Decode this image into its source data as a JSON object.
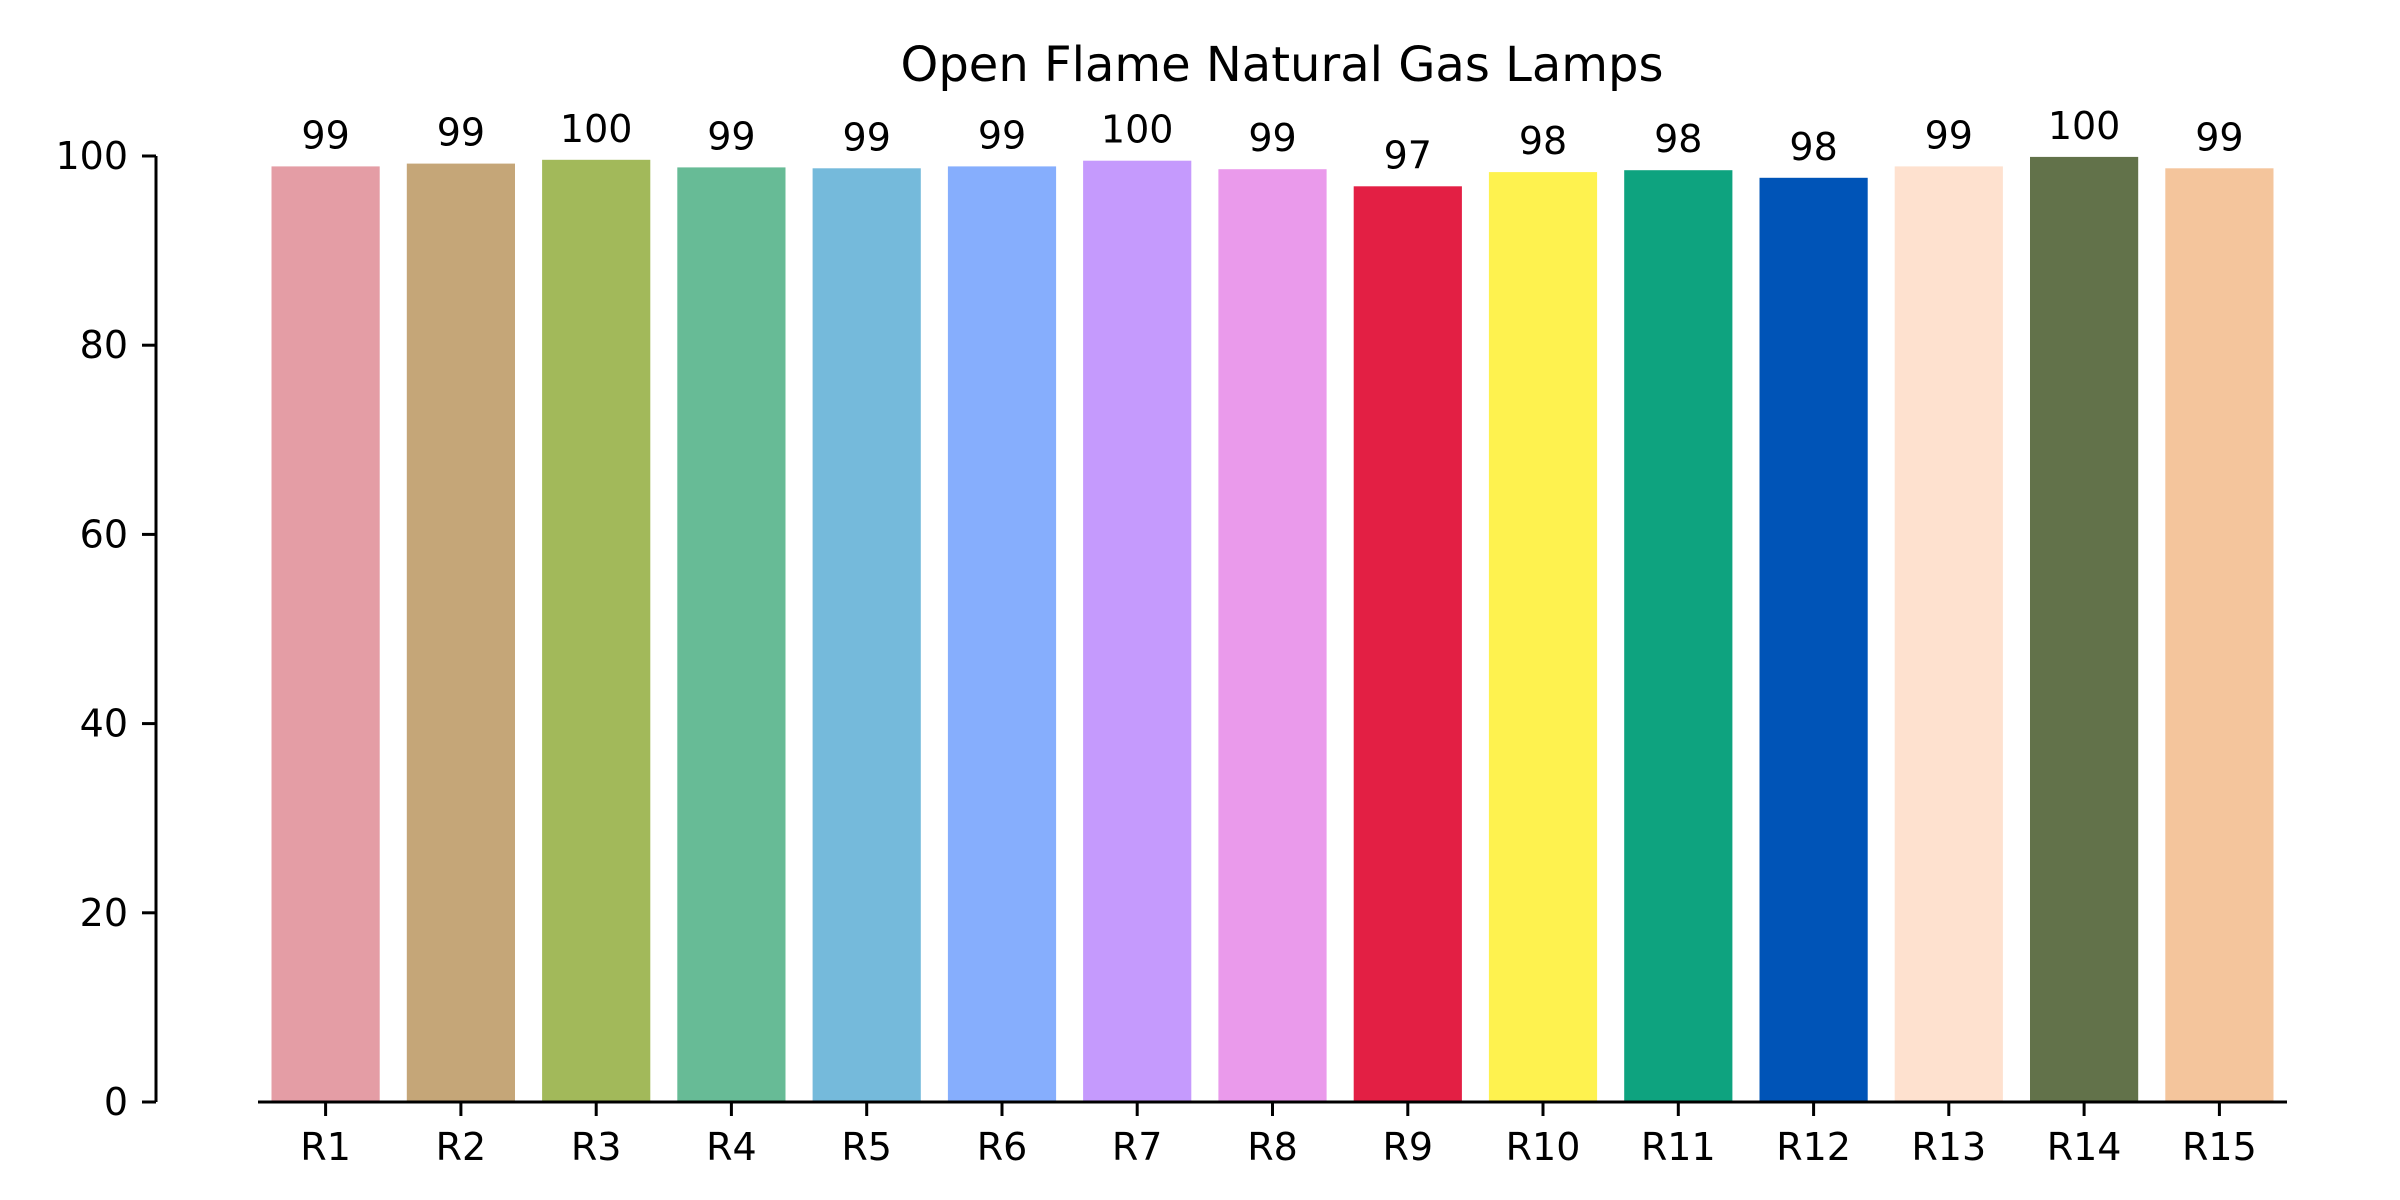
{
  "chart_data": {
    "type": "bar",
    "title": "Open Flame Natural Gas Lamps",
    "xlabel": "",
    "ylabel": "",
    "categories": [
      "R1",
      "R2",
      "R3",
      "R4",
      "R5",
      "R6",
      "R7",
      "R8",
      "R9",
      "R10",
      "R11",
      "R12",
      "R13",
      "R14",
      "R15"
    ],
    "values": [
      98.9,
      99.2,
      99.6,
      98.8,
      98.7,
      98.9,
      99.5,
      98.6,
      96.8,
      98.3,
      98.5,
      97.7,
      98.9,
      99.9,
      98.7
    ],
    "value_labels": [
      "99",
      "99",
      "100",
      "99",
      "99",
      "99",
      "100",
      "99",
      "97",
      "98",
      "98",
      "98",
      "99",
      "100",
      "99"
    ],
    "colors": [
      "#E49DA5",
      "#C5A678",
      "#A2B95A",
      "#67BB96",
      "#75BADB",
      "#86AEFD",
      "#C59AFD",
      "#EA9AEB",
      "#E31F44",
      "#FEF24F",
      "#0EA37F",
      "#0054B7",
      "#FEE1CF",
      "#62724A",
      "#F4C59C"
    ],
    "ylim": [
      0,
      100
    ],
    "yticks": [
      0,
      20,
      40,
      60,
      80,
      100
    ],
    "grid": false,
    "legend": "none"
  }
}
